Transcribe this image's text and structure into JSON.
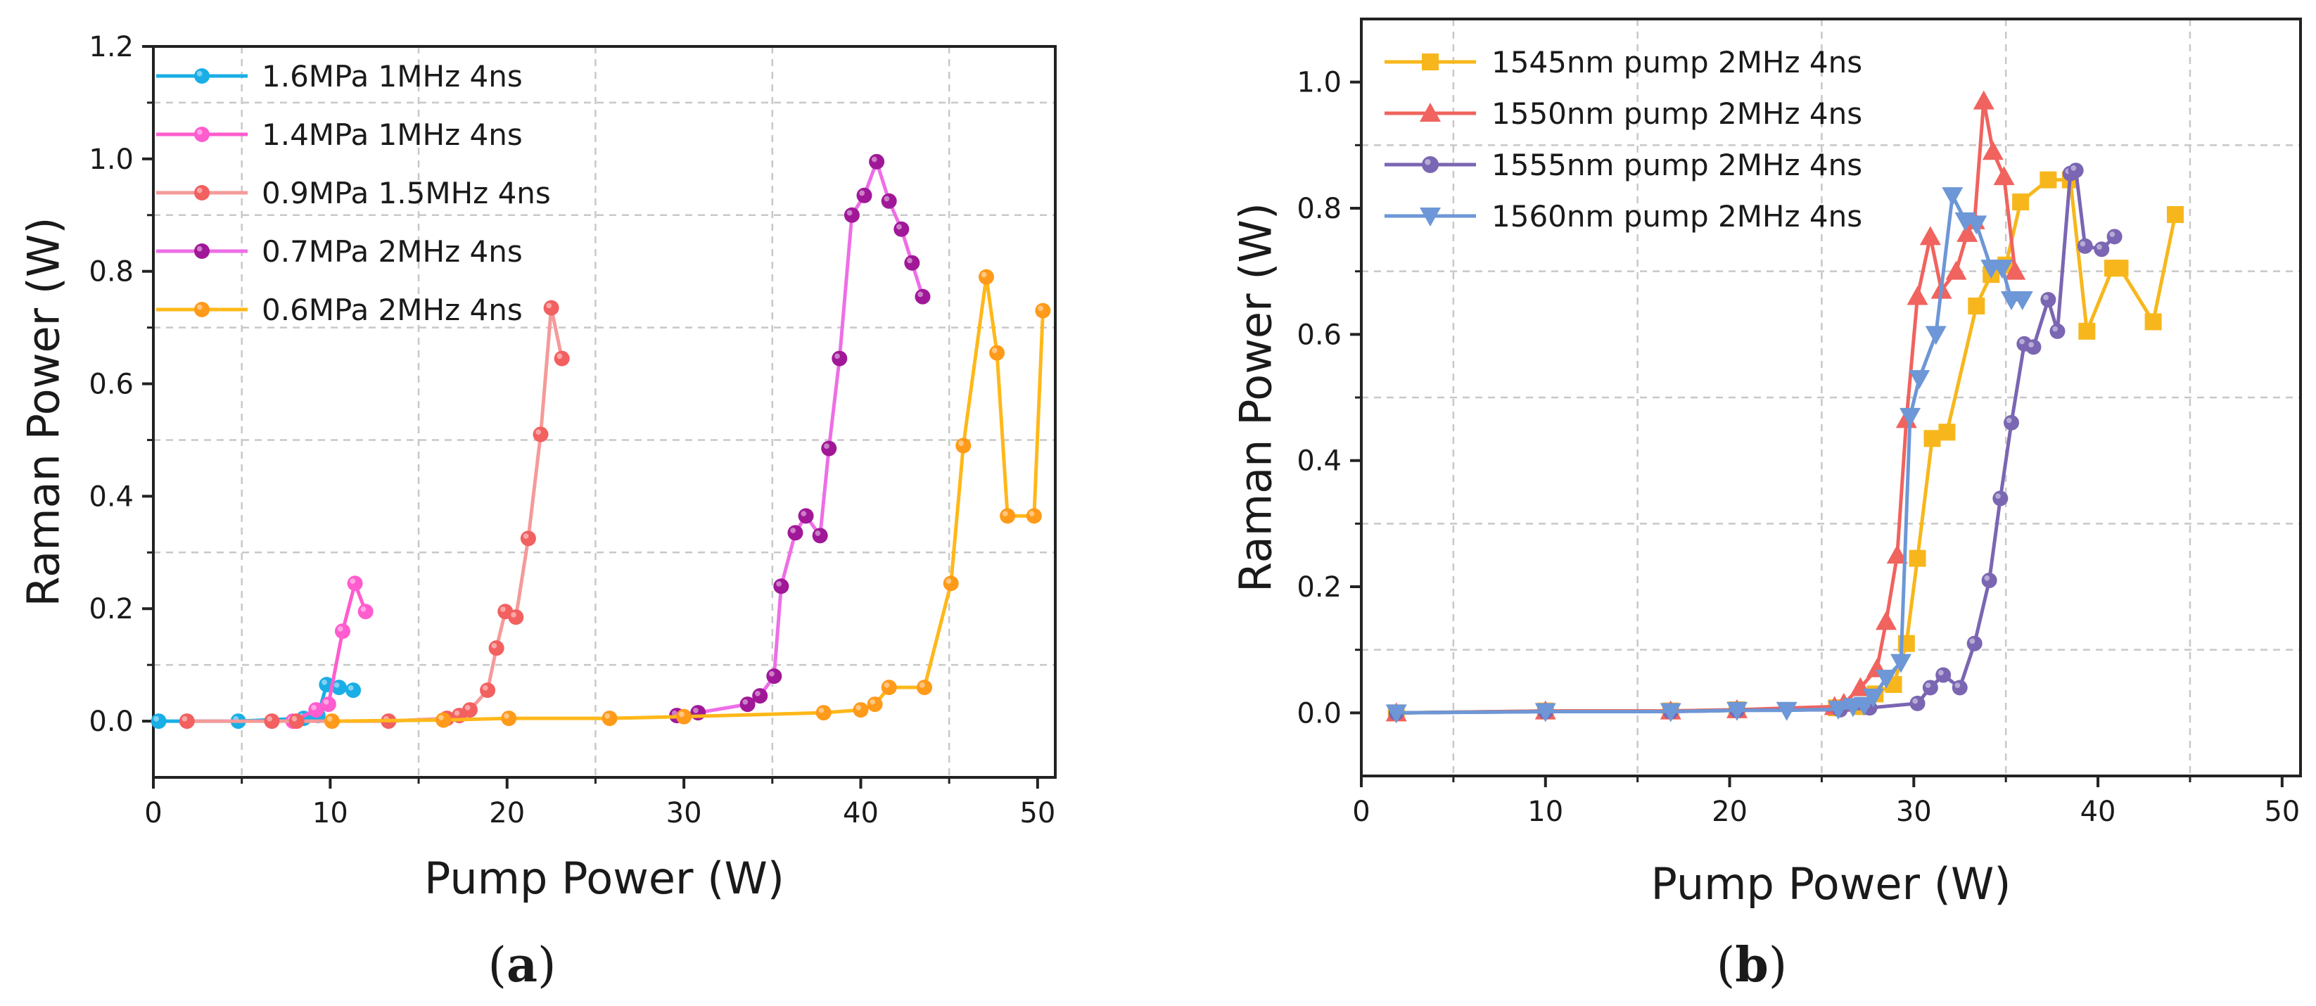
{
  "chart_data": [
    {
      "type": "line",
      "panel_label": "(a)",
      "panel_letter": "a",
      "xlabel": "Pump Power (W)",
      "ylabel": "Raman Power (W)",
      "xlim": [
        0,
        51
      ],
      "ylim": [
        -0.1,
        1.2
      ],
      "xticks": [
        0,
        10,
        20,
        30,
        40,
        50
      ],
      "xtick_labels": [
        "0",
        "10",
        "20",
        "30",
        "40",
        "50"
      ],
      "yticks": [
        0.0,
        0.2,
        0.4,
        0.6,
        0.8,
        1.0,
        1.2
      ],
      "ytick_labels": [
        "0.0",
        "0.2",
        "0.4",
        "0.6",
        "0.8",
        "1.0",
        "1.2"
      ],
      "xgrid": [
        5,
        15,
        25,
        35,
        45
      ],
      "ygrid": [
        0.1,
        0.3,
        0.5,
        0.7,
        0.9,
        1.1
      ],
      "legend_position": "top-left",
      "series": [
        {
          "name": "1.6MPa 1MHz 4ns",
          "marker": "circle",
          "color": "#1aaee6",
          "x": [
            0.3,
            4.8,
            8.5,
            9.3,
            9.8,
            10.5,
            11.3
          ],
          "y": [
            0.0,
            0.0,
            0.005,
            0.01,
            0.065,
            0.06,
            0.055
          ]
        },
        {
          "name": "1.4MPa 1MHz 4ns",
          "marker": "circle",
          "color": "#ff5ccf",
          "x": [
            7.9,
            9.2,
            9.9,
            10.7,
            11.4,
            12.0
          ],
          "y": [
            0.0,
            0.02,
            0.03,
            0.16,
            0.245,
            0.195
          ]
        },
        {
          "name": "0.9MPa 1.5MHz 4ns",
          "marker": "circle",
          "color": "#f26060",
          "x": [
            1.9,
            6.7,
            8.1,
            13.3,
            16.6,
            17.3,
            17.9,
            18.9,
            19.4,
            19.9,
            20.5,
            21.2,
            21.9,
            22.5,
            23.1
          ],
          "y": [
            0.0,
            0.0,
            0.0,
            0.0,
            0.005,
            0.01,
            0.02,
            0.055,
            0.13,
            0.195,
            0.185,
            0.325,
            0.51,
            0.735,
            0.645
          ],
          "line_color": "#f59a9a"
        },
        {
          "name": "0.7MPa 2MHz 4ns",
          "marker": "circle",
          "color": "#a01898",
          "x": [
            29.6,
            30.8,
            33.6,
            34.3,
            35.1,
            35.5,
            36.3,
            36.9,
            37.7,
            38.2,
            38.8,
            39.5,
            40.2,
            40.9,
            41.6,
            42.3,
            42.9,
            43.5
          ],
          "y": [
            0.01,
            0.015,
            0.03,
            0.045,
            0.08,
            0.24,
            0.335,
            0.365,
            0.33,
            0.485,
            0.645,
            0.9,
            0.935,
            0.995,
            0.925,
            0.875,
            0.815,
            0.755
          ],
          "line_color": "#ee6ee6"
        },
        {
          "name": "0.6MPa 2MHz 4ns",
          "marker": "circle",
          "color": "#ff9a1a",
          "x": [
            10.1,
            16.4,
            20.1,
            25.8,
            30.0,
            37.9,
            40.0,
            40.8,
            41.6,
            43.6,
            45.1,
            45.8,
            47.1,
            47.7,
            48.3,
            49.8,
            50.3
          ],
          "y": [
            0.0,
            0.002,
            0.005,
            0.005,
            0.008,
            0.015,
            0.02,
            0.03,
            0.06,
            0.06,
            0.245,
            0.49,
            0.79,
            0.655,
            0.365,
            0.365,
            0.73
          ],
          "line_color": "#ffb81a"
        }
      ]
    },
    {
      "type": "line",
      "panel_label": "(b)",
      "panel_letter": "b",
      "xlabel": "Pump Power (W)",
      "ylabel": "Raman Power (W)",
      "xlim": [
        0,
        51
      ],
      "ylim": [
        -0.1,
        1.1
      ],
      "xticks": [
        0,
        10,
        20,
        30,
        40,
        50
      ],
      "xtick_labels": [
        "0",
        "10",
        "20",
        "30",
        "40",
        "50"
      ],
      "yticks": [
        0.0,
        0.2,
        0.4,
        0.6,
        0.8,
        1.0
      ],
      "ytick_labels": [
        "0.0",
        "0.2",
        "0.4",
        "0.6",
        "0.8",
        "1.0"
      ],
      "xgrid": [
        5,
        15,
        25,
        35,
        45
      ],
      "ygrid": [
        0.1,
        0.3,
        0.5,
        0.7,
        0.9
      ],
      "legend_position": "top-left",
      "series": [
        {
          "name": "1545nm pump 2MHz 4ns",
          "marker": "square",
          "color": "#f7b71c",
          "x": [
            1.9,
            10.0,
            16.8,
            20.4,
            25.8,
            27.1,
            27.9,
            28.9,
            29.6,
            30.2,
            31.0,
            31.8,
            33.4,
            34.2,
            35.0,
            35.8,
            37.3,
            38.5,
            39.4,
            40.8,
            41.2,
            43.0,
            44.2
          ],
          "y": [
            0.0,
            0.003,
            0.003,
            0.005,
            0.008,
            0.01,
            0.03,
            0.045,
            0.11,
            0.245,
            0.435,
            0.445,
            0.645,
            0.695,
            0.71,
            0.81,
            0.845,
            0.845,
            0.605,
            0.705,
            0.705,
            0.62,
            0.79
          ]
        },
        {
          "name": "1550nm pump 2MHz 4ns",
          "marker": "triangle-up",
          "color": "#f0635e",
          "x": [
            1.9,
            10.0,
            16.8,
            20.4,
            25.7,
            26.2,
            27.1,
            28.0,
            28.5,
            29.1,
            29.6,
            30.2,
            30.9,
            31.5,
            32.3,
            32.9,
            33.3,
            33.8,
            34.3,
            34.9,
            35.5
          ],
          "y": [
            0.0,
            0.003,
            0.003,
            0.005,
            0.01,
            0.015,
            0.04,
            0.07,
            0.145,
            0.25,
            0.465,
            0.66,
            0.755,
            0.67,
            0.7,
            0.76,
            0.78,
            0.97,
            0.89,
            0.85,
            0.7
          ]
        },
        {
          "name": "1555nm pump 2MHz 4ns",
          "marker": "circle",
          "color": "#7a66b2",
          "x": [
            1.9,
            10.0,
            16.8,
            20.4,
            26.0,
            27.6,
            30.2,
            30.9,
            31.6,
            32.5,
            33.3,
            34.1,
            34.7,
            35.3,
            36.0,
            36.5,
            37.3,
            37.8,
            38.5,
            38.8,
            39.3,
            40.2,
            40.9
          ],
          "y": [
            0.0,
            0.002,
            0.002,
            0.004,
            0.005,
            0.008,
            0.015,
            0.04,
            0.06,
            0.04,
            0.11,
            0.21,
            0.34,
            0.46,
            0.585,
            0.58,
            0.655,
            0.605,
            0.855,
            0.86,
            0.74,
            0.735,
            0.755
          ]
        },
        {
          "name": "1560nm pump 2MHz 4ns",
          "marker": "triangle-down",
          "color": "#6d97d6",
          "x": [
            1.9,
            10.0,
            16.8,
            20.4,
            23.1,
            25.9,
            26.7,
            27.3,
            27.8,
            28.5,
            29.3,
            29.8,
            30.3,
            31.2,
            32.1,
            32.8,
            33.4,
            34.2,
            34.8,
            35.3,
            35.9
          ],
          "y": [
            0.0,
            0.002,
            0.002,
            0.004,
            0.004,
            0.006,
            0.01,
            0.012,
            0.025,
            0.055,
            0.08,
            0.47,
            0.53,
            0.6,
            0.82,
            0.78,
            0.775,
            0.705,
            0.705,
            0.655,
            0.655
          ]
        }
      ]
    }
  ]
}
